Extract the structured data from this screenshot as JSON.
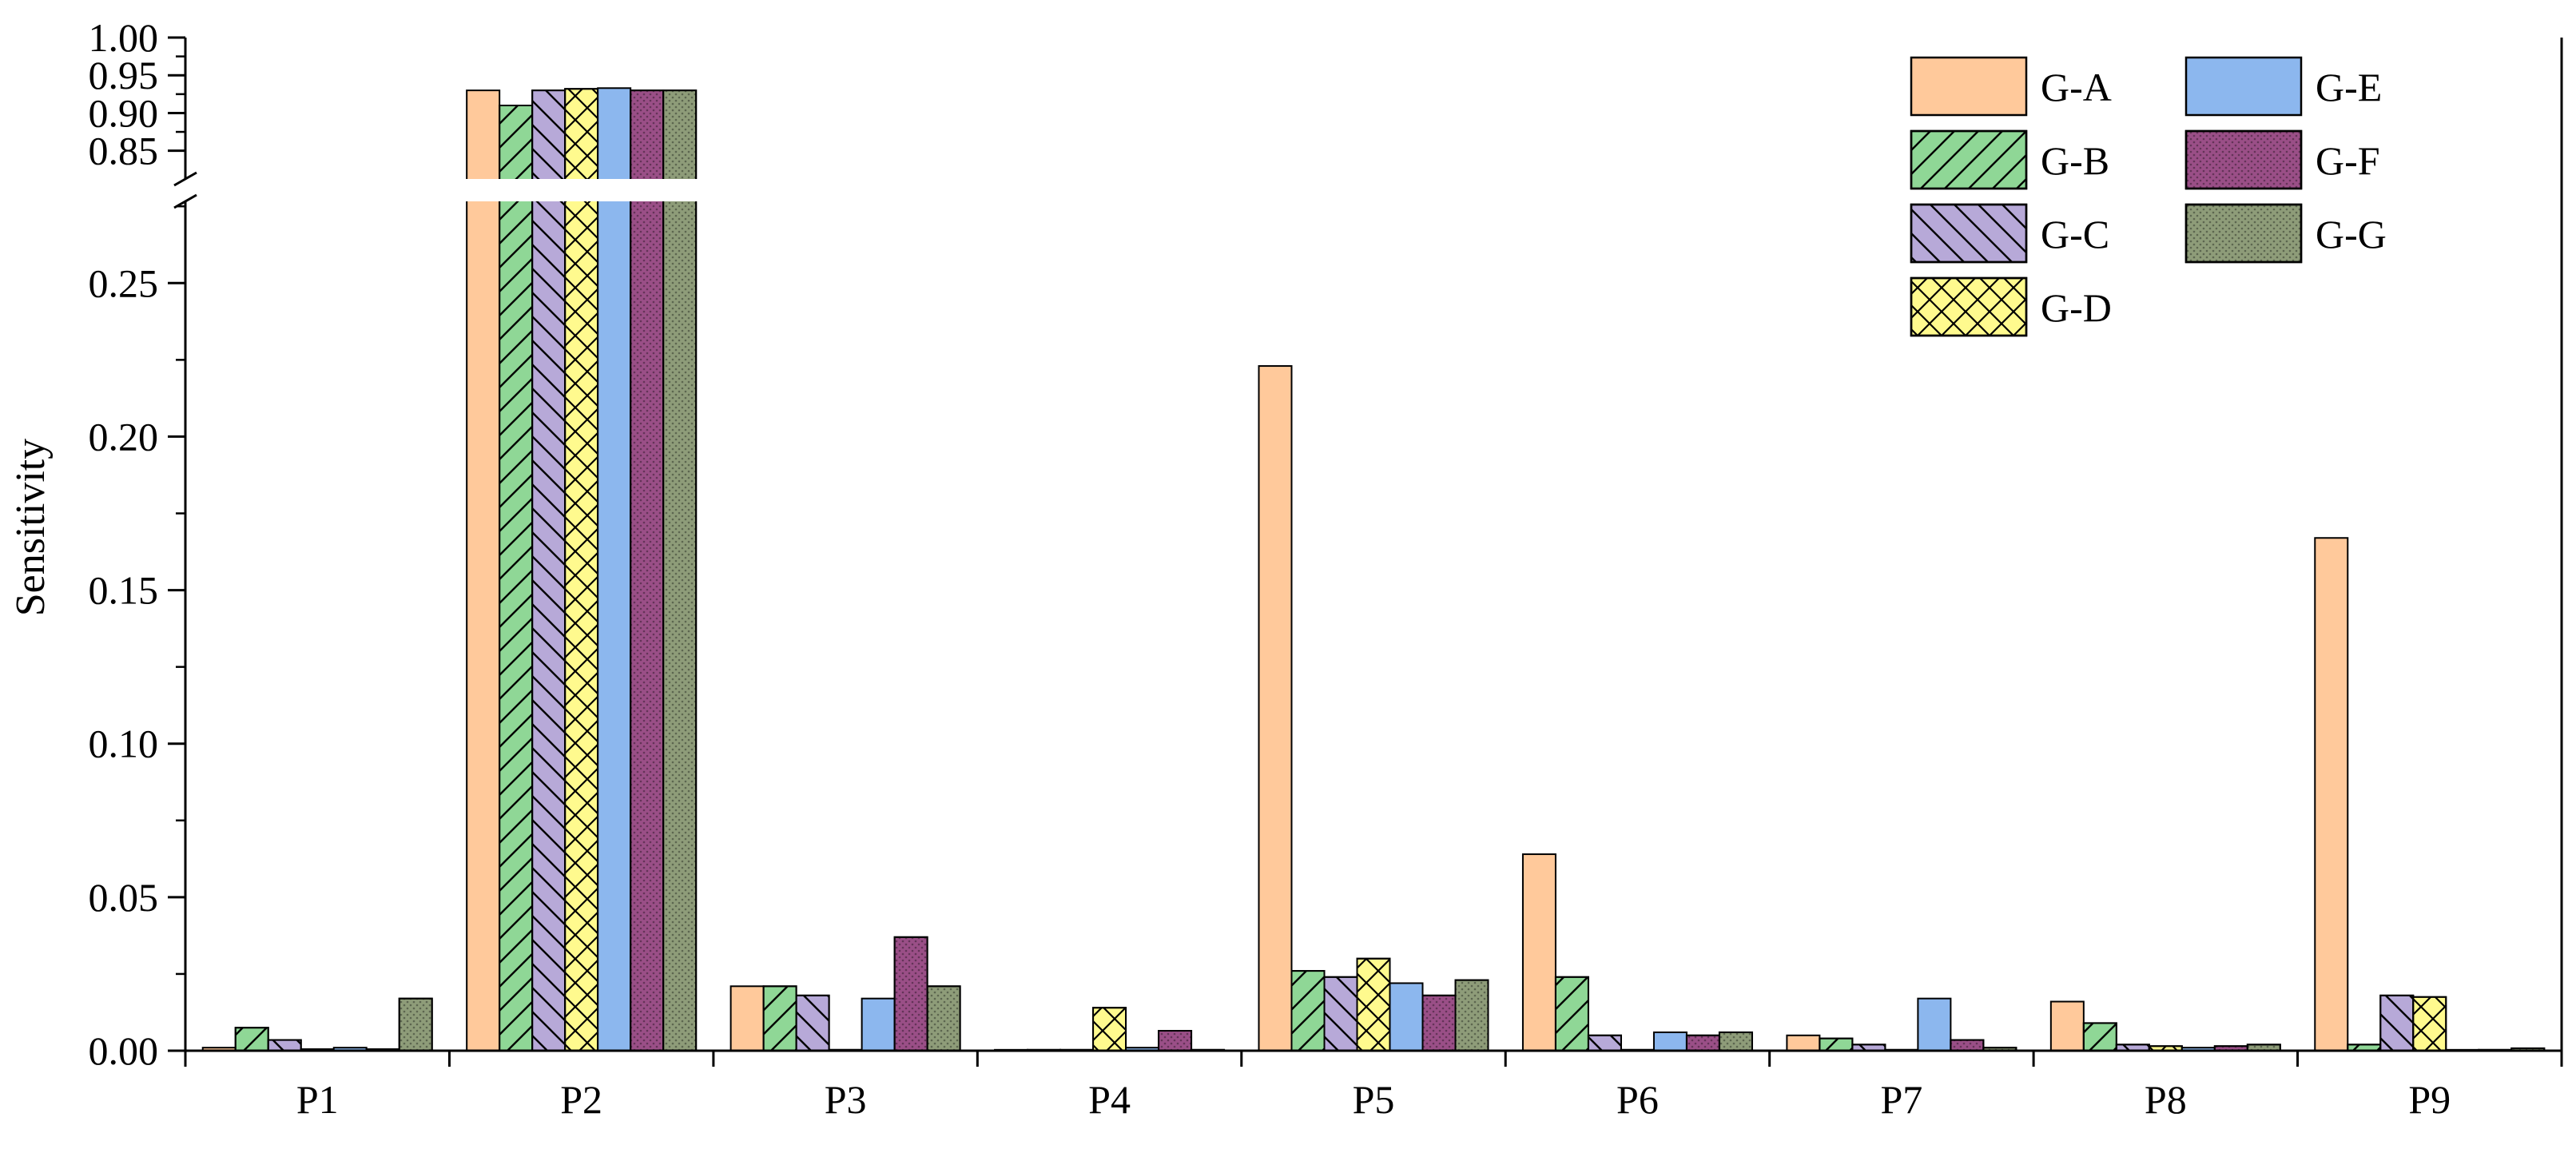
{
  "chart_data": {
    "type": "bar",
    "ylabel": "Sensitivity",
    "xlabel": "",
    "categories": [
      "P1",
      "P2",
      "P3",
      "P4",
      "P5",
      "P6",
      "P7",
      "P8",
      "P9"
    ],
    "y_axis": {
      "broken": true,
      "lower_range": [
        0,
        0.28
      ],
      "upper_range": [
        0.82,
        1.0
      ],
      "lower_ticks": [
        "0.00",
        "0.05",
        "0.10",
        "0.15",
        "0.20",
        "0.25"
      ],
      "upper_ticks": [
        "0.85",
        "0.90",
        "0.95",
        "1.00"
      ]
    },
    "grid": false,
    "legend": "top-right",
    "series": [
      {
        "name": "G-A",
        "color": "#FFC99B",
        "pattern": "none",
        "values": [
          0.001,
          0.93,
          0.021,
          0.0003,
          0.223,
          0.064,
          0.005,
          0.016,
          0.167
        ]
      },
      {
        "name": "G-B",
        "color": "#8FD796",
        "pattern": "diagonal-forward",
        "values": [
          0.0075,
          0.91,
          0.021,
          0.0003,
          0.026,
          0.024,
          0.004,
          0.009,
          0.002
        ]
      },
      {
        "name": "G-C",
        "color": "#B7A9D8",
        "pattern": "diagonal-back",
        "values": [
          0.0035,
          0.93,
          0.018,
          0.0003,
          0.024,
          0.005,
          0.002,
          0.002,
          0.018
        ]
      },
      {
        "name": "G-D",
        "color": "#FFFA8E",
        "pattern": "crosshatch",
        "values": [
          0.0005,
          0.932,
          0.0003,
          0.014,
          0.03,
          0.0003,
          0.0003,
          0.0015,
          0.0175
        ]
      },
      {
        "name": "G-E",
        "color": "#8CB7EE",
        "pattern": "none",
        "values": [
          0.001,
          0.933,
          0.017,
          0.001,
          0.022,
          0.006,
          0.017,
          0.001,
          0.0003
        ]
      },
      {
        "name": "G-F",
        "color": "#9A4F87",
        "pattern": "dots",
        "values": [
          0.0005,
          0.93,
          0.037,
          0.0065,
          0.018,
          0.005,
          0.0035,
          0.0015,
          0.0003
        ]
      },
      {
        "name": "G-G",
        "color": "#8E9C79",
        "pattern": "dots",
        "values": [
          0.017,
          0.93,
          0.021,
          0.0003,
          0.023,
          0.006,
          0.001,
          0.002,
          0.0008
        ]
      }
    ]
  }
}
